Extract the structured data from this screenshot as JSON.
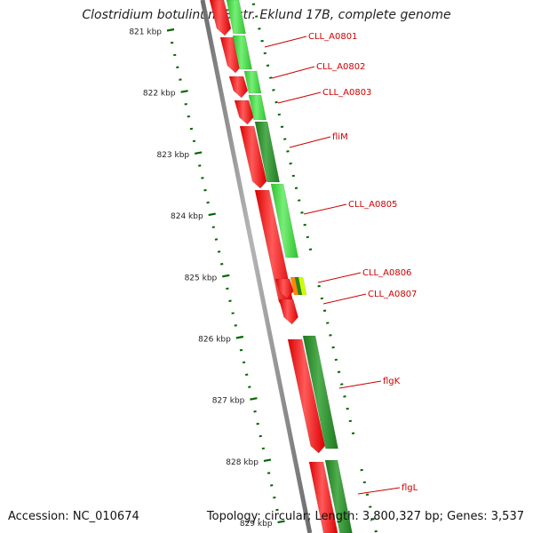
{
  "title": "Clostridium botulinum B str. Eklund 17B, complete genome",
  "accession": "Accession: NC_010674",
  "stats": "Topology: circular; Length: 3,800,327 bp; Genes: 3,537",
  "ticks": [
    {
      "label": "821 kbp"
    },
    {
      "label": "822 kbp"
    },
    {
      "label": "823 kbp"
    },
    {
      "label": "824 kbp"
    },
    {
      "label": "825 kbp"
    },
    {
      "label": "826 kbp"
    },
    {
      "label": "827 kbp"
    },
    {
      "label": "828 kbp"
    },
    {
      "label": "829 kbp"
    }
  ],
  "genes": [
    {
      "label": "CLL_A0801"
    },
    {
      "label": "CLL_A0802"
    },
    {
      "label": "CLL_A0803"
    },
    {
      "label": "fliM"
    },
    {
      "label": "CLL_A0805"
    },
    {
      "label": "CLL_A0806"
    },
    {
      "label": "CLL_A0807"
    },
    {
      "label": "flgK"
    },
    {
      "label": "flgL"
    }
  ],
  "colors": {
    "gene_red": "#ff0000",
    "gene_green": "#2e8b2e",
    "gene_lightgreen": "#44dd44",
    "gene_orange": "#ff8800",
    "gene_yellow": "#ccff00",
    "axis": "#888888",
    "tick": "#006600",
    "label": "#cc0000"
  }
}
